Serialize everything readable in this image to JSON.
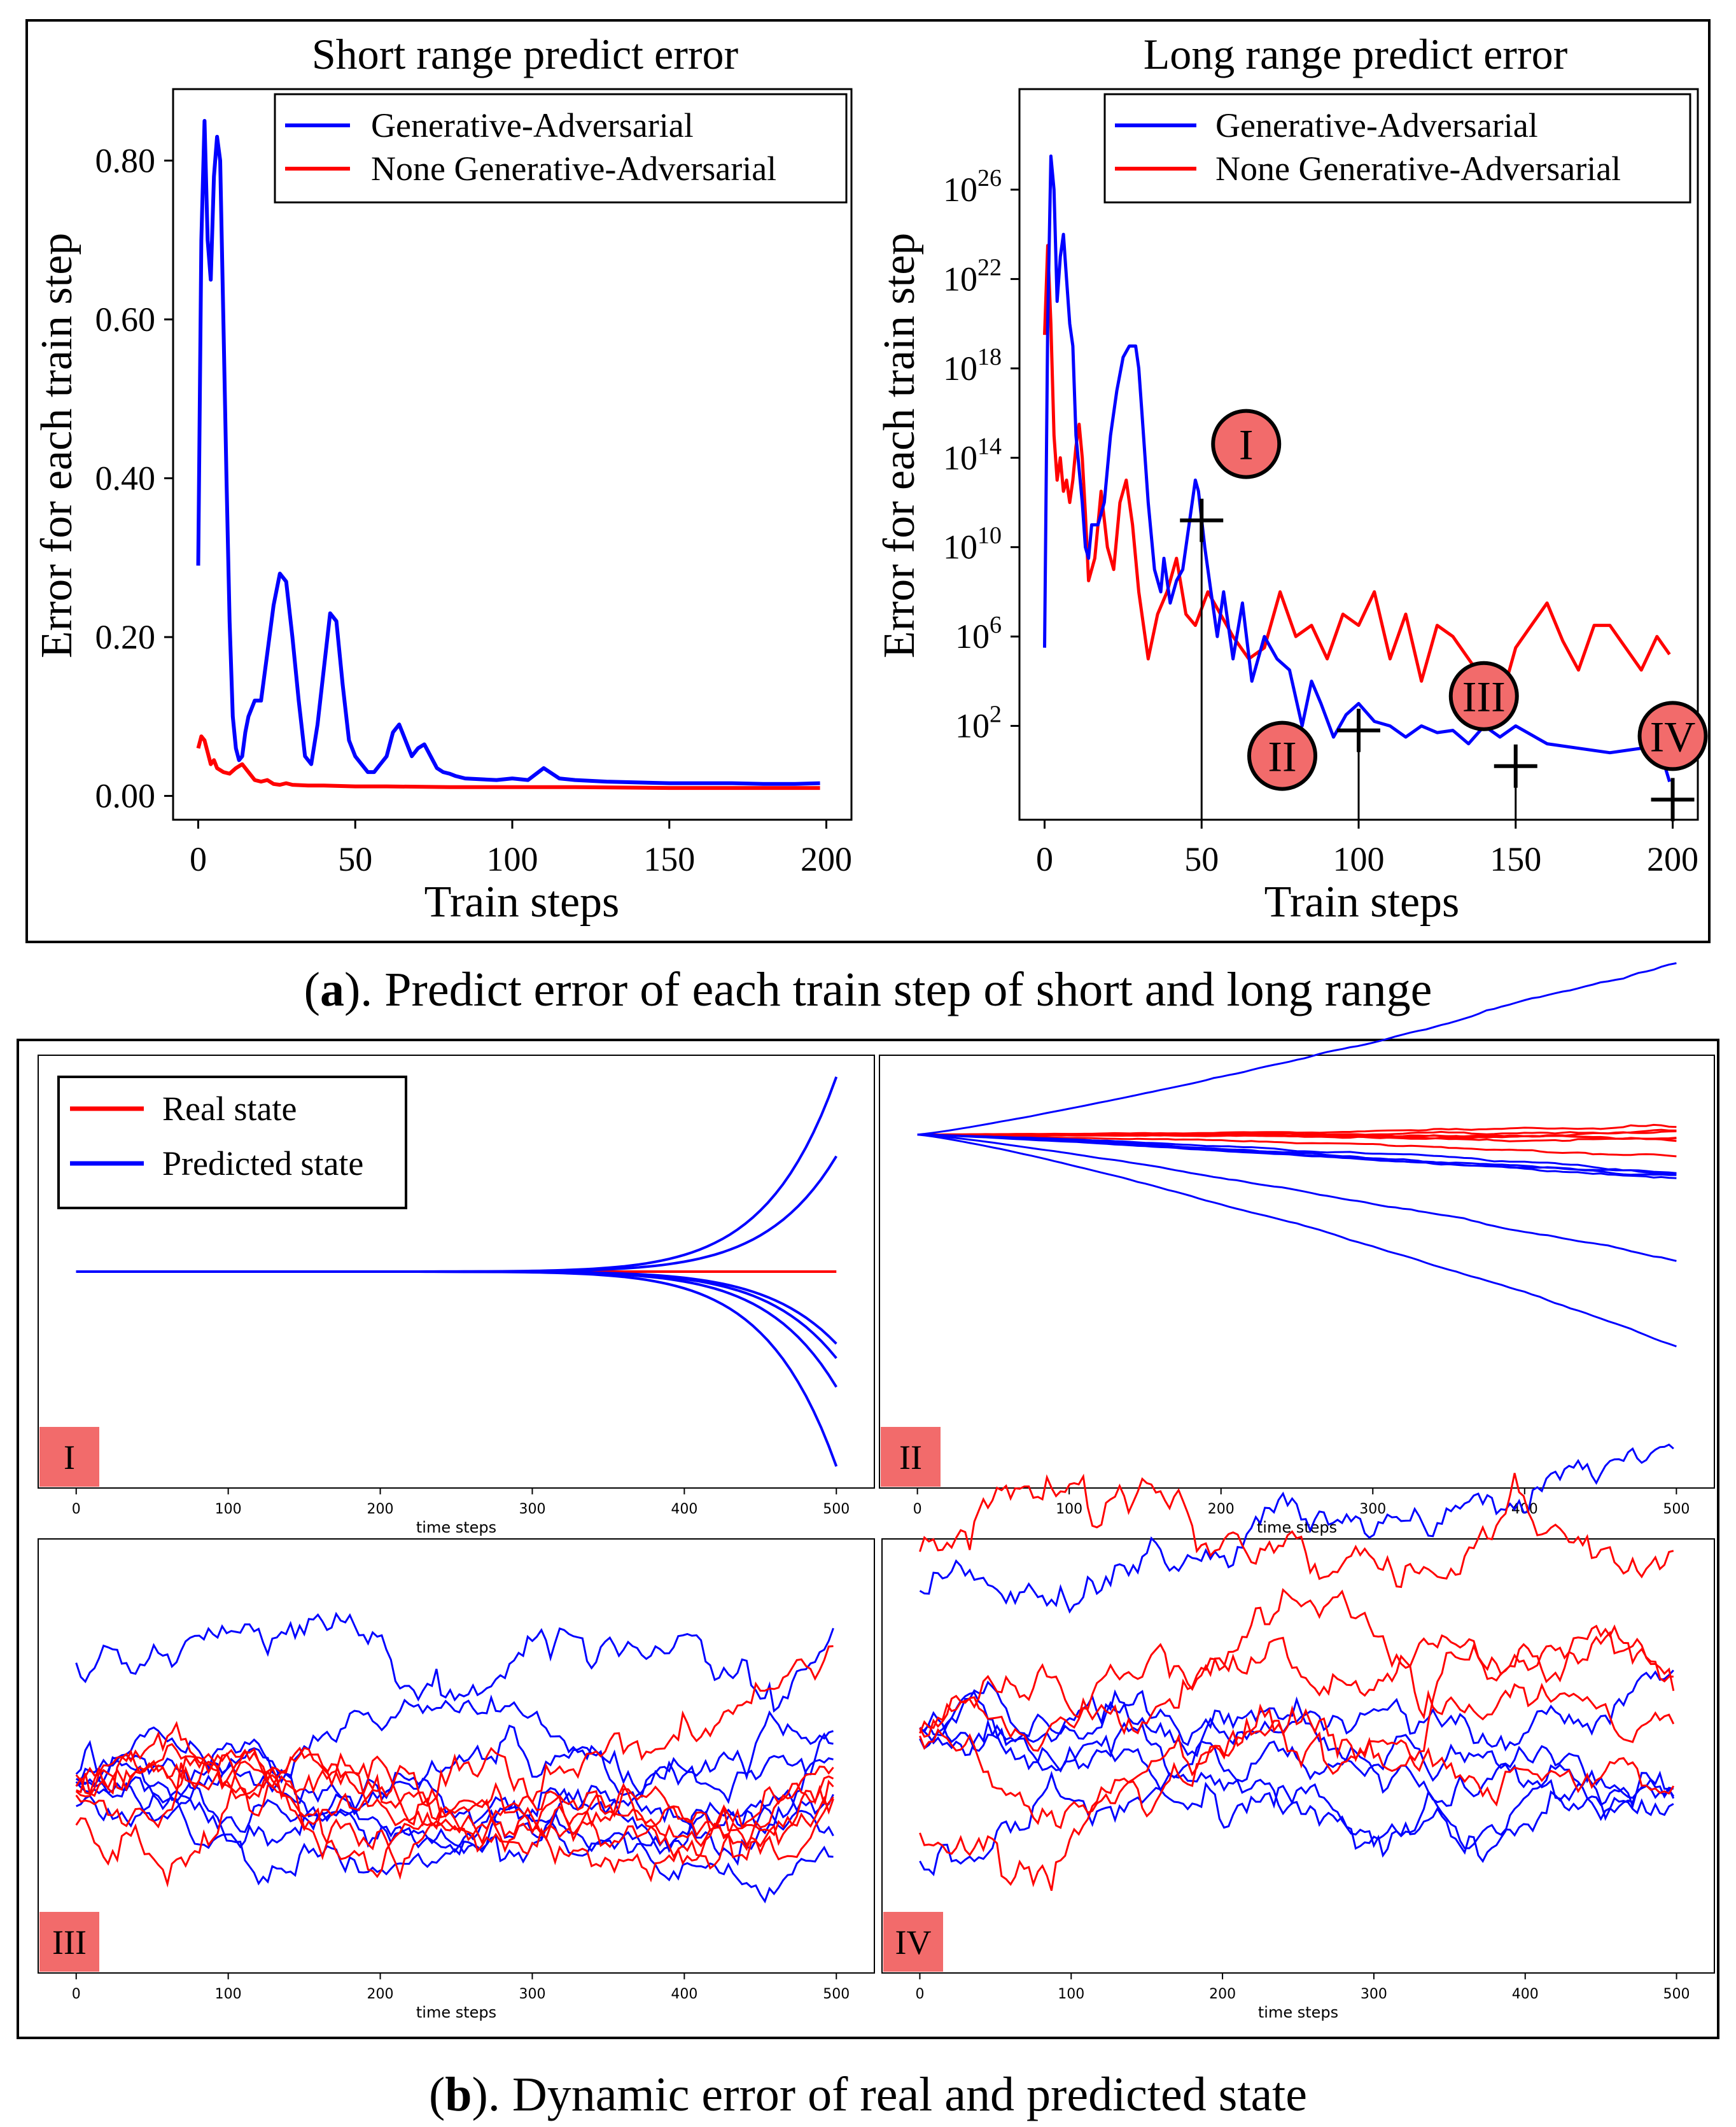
{
  "caption_a": {
    "label": "a",
    "text": "). Predict error of each train step of short and long range"
  },
  "caption_b": {
    "label": "b",
    "text": "). Dynamic error of real and predicted state"
  },
  "colors": {
    "blue": "#0000ff",
    "red": "#ff0000",
    "badge": "#f26b6b"
  },
  "chart_data": [
    {
      "id": "short",
      "type": "line",
      "title": "Short range predict error",
      "xlabel": "Train  steps",
      "ylabel": "Error for each train step",
      "xlim": [
        -8,
        208
      ],
      "ylim": [
        -0.03,
        0.89
      ],
      "xticks": [
        0,
        50,
        100,
        150,
        200
      ],
      "yticks": [
        0.0,
        0.2,
        0.4,
        0.6,
        0.8
      ],
      "ytick_labels": [
        "0.00",
        "0.20",
        "0.40",
        "0.60",
        "0.80"
      ],
      "legend": [
        "Generative-Adversarial",
        "None Generative-Adversarial"
      ],
      "series": [
        {
          "name": "Generative-Adversarial",
          "color": "#0000ff",
          "x": [
            0,
            1,
            2,
            3,
            4,
            5,
            6,
            7,
            8,
            9,
            10,
            11,
            12,
            13,
            14,
            15,
            16,
            18,
            20,
            22,
            24,
            26,
            28,
            30,
            32,
            34,
            36,
            38,
            40,
            42,
            44,
            46,
            48,
            50,
            52,
            54,
            56,
            58,
            60,
            62,
            64,
            66,
            68,
            70,
            72,
            74,
            76,
            78,
            80,
            82,
            85,
            90,
            95,
            100,
            105,
            110,
            115,
            120,
            130,
            140,
            150,
            160,
            170,
            180,
            190,
            198
          ],
          "y": [
            0.29,
            0.7,
            0.85,
            0.7,
            0.65,
            0.78,
            0.83,
            0.8,
            0.6,
            0.4,
            0.22,
            0.1,
            0.06,
            0.045,
            0.05,
            0.08,
            0.1,
            0.12,
            0.12,
            0.18,
            0.24,
            0.28,
            0.27,
            0.2,
            0.12,
            0.05,
            0.04,
            0.09,
            0.16,
            0.23,
            0.22,
            0.14,
            0.07,
            0.05,
            0.04,
            0.03,
            0.03,
            0.04,
            0.05,
            0.08,
            0.09,
            0.07,
            0.05,
            0.06,
            0.065,
            0.05,
            0.035,
            0.03,
            0.028,
            0.025,
            0.022,
            0.021,
            0.02,
            0.022,
            0.02,
            0.035,
            0.022,
            0.02,
            0.018,
            0.017,
            0.016,
            0.016,
            0.016,
            0.015,
            0.015,
            0.016
          ]
        },
        {
          "name": "None Generative-Adversarial",
          "color": "#ff0000",
          "x": [
            0,
            1,
            2,
            3,
            4,
            5,
            6,
            8,
            10,
            12,
            14,
            16,
            18,
            20,
            22,
            24,
            26,
            28,
            30,
            35,
            40,
            50,
            60,
            80,
            100,
            120,
            150,
            180,
            198
          ],
          "y": [
            0.06,
            0.075,
            0.07,
            0.055,
            0.04,
            0.045,
            0.035,
            0.03,
            0.028,
            0.035,
            0.04,
            0.03,
            0.02,
            0.018,
            0.02,
            0.015,
            0.014,
            0.016,
            0.014,
            0.013,
            0.013,
            0.012,
            0.012,
            0.011,
            0.011,
            0.011,
            0.01,
            0.01,
            0.01
          ]
        }
      ]
    },
    {
      "id": "long",
      "type": "line",
      "title": "Long range predict error",
      "xlabel": "Train  steps",
      "ylabel": "Error for each train step",
      "yscale": "log",
      "xlim": [
        -8,
        208
      ],
      "ylim_log10": [
        -2.2,
        30.5
      ],
      "xticks": [
        0,
        50,
        100,
        150,
        200
      ],
      "yticks_log10": [
        2,
        6,
        10,
        14,
        18,
        22,
        26
      ],
      "legend": [
        "Generative-Adversarial",
        "None Generative-Adversarial"
      ],
      "markers": [
        {
          "label": "I",
          "x": 50,
          "log10y": 11.2
        },
        {
          "label": "II",
          "x": 100,
          "log10y": 1.8
        },
        {
          "label": "III",
          "x": 150,
          "log10y": 0.2
        },
        {
          "label": "IV",
          "x": 200,
          "log10y": -1.3
        }
      ],
      "series": [
        {
          "name": "Generative-Adversarial",
          "color": "#0000ff",
          "x": [
            0,
            1,
            2,
            3,
            4,
            5,
            6,
            7,
            8,
            9,
            10,
            12,
            13,
            14,
            15,
            17,
            19,
            21,
            23,
            25,
            27,
            29,
            30,
            31,
            33,
            35,
            37,
            38,
            40,
            42,
            44,
            46,
            48,
            49,
            51,
            53,
            55,
            57,
            60,
            63,
            66,
            70,
            74,
            78,
            82,
            85,
            88,
            92,
            96,
            100,
            105,
            110,
            115,
            120,
            125,
            130,
            135,
            140,
            145,
            150,
            160,
            170,
            180,
            190,
            196,
            199
          ],
          "y": [
            5.5,
            20,
            27.5,
            26,
            21,
            23,
            24,
            22,
            20,
            19,
            15,
            12,
            10,
            9.5,
            11,
            11,
            12,
            15,
            17,
            18.5,
            19,
            19,
            18,
            16,
            12,
            9,
            8,
            9.5,
            7.5,
            8.5,
            9,
            11,
            13,
            12.5,
            10,
            8,
            6,
            8,
            5,
            7.5,
            4,
            6,
            5,
            4.5,
            2,
            4,
            3,
            1.5,
            2.5,
            3,
            2.2,
            2,
            1.5,
            2,
            1.7,
            1.8,
            1.2,
            2,
            1.5,
            2,
            1.2,
            1,
            0.8,
            1,
            0.9,
            -0.5
          ]
        },
        {
          "name": "None Generative-Adversarial",
          "color": "#ff0000",
          "x": [
            0,
            1,
            2,
            3,
            4,
            5,
            6,
            7,
            8,
            9,
            10,
            11,
            12,
            13,
            14,
            15,
            16,
            17,
            18,
            20,
            22,
            24,
            26,
            28,
            30,
            33,
            36,
            39,
            42,
            45,
            48,
            52,
            56,
            60,
            65,
            70,
            75,
            80,
            85,
            90,
            95,
            100,
            105,
            110,
            115,
            120,
            125,
            130,
            135,
            140,
            145,
            150,
            155,
            160,
            165,
            170,
            175,
            180,
            185,
            190,
            195,
            199
          ],
          "y": [
            19.5,
            23.5,
            20,
            15,
            13,
            14,
            12.5,
            13,
            12,
            13,
            14.5,
            15.5,
            14,
            11.5,
            8.5,
            9,
            9.5,
            11,
            12.5,
            10,
            9,
            12,
            13,
            11,
            8,
            5,
            7,
            8,
            9.5,
            7,
            6.5,
            8,
            7,
            6,
            5,
            5.5,
            8,
            6,
            6.5,
            5,
            7,
            6.5,
            8,
            5,
            7,
            4,
            6.5,
            6,
            5,
            4,
            3,
            5.5,
            6.5,
            7.5,
            5.8,
            4.5,
            6.5,
            6.5,
            5.5,
            4.5,
            6,
            5.2
          ]
        }
      ]
    },
    {
      "id": "I",
      "type": "line",
      "label": "I",
      "xlabel": "time steps",
      "xlim": [
        -25,
        525
      ],
      "ylim": [
        -15,
        15
      ],
      "xticks": [
        0,
        100,
        200,
        300,
        400,
        500
      ],
      "legend": [
        "Real state",
        "Predicted state"
      ],
      "pattern": "exponential-divergence",
      "series": [
        {
          "name": "Real state",
          "color": "#ff0000",
          "x": [
            0,
            500
          ],
          "y": [
            0,
            0
          ]
        },
        {
          "name": "Predicted state",
          "color": "#0000ff",
          "endpoints": [
            13.5,
            8,
            -5,
            -6,
            -8,
            -13.5
          ]
        }
      ]
    },
    {
      "id": "II",
      "type": "line",
      "label": "II",
      "xlabel": "time steps",
      "xlim": [
        -25,
        525
      ],
      "ylim": [
        -15,
        15
      ],
      "xticks": [
        0,
        100,
        200,
        300,
        400,
        500
      ],
      "pattern": "diffusion",
      "series": [
        {
          "name": "Real state",
          "color": "#ff0000",
          "endpoints": [
            0.1,
            0.0,
            -0.3,
            -0.4,
            -0.5,
            -0.2,
            -0.6
          ]
        },
        {
          "name": "Predicted state",
          "color": "#0000ff",
          "endpoints": [
            12.5,
            -2.4,
            -2.9,
            -3.2,
            -3.6,
            -8.5,
            -14.5
          ]
        }
      ]
    },
    {
      "id": "III",
      "type": "line",
      "label": "III",
      "xlabel": "time steps",
      "xlim": [
        -25,
        525
      ],
      "ylim": [
        -15,
        15
      ],
      "xticks": [
        0,
        100,
        200,
        300,
        400,
        500
      ],
      "pattern": "random-walk"
    },
    {
      "id": "IV",
      "type": "line",
      "label": "IV",
      "xlabel": "time steps",
      "xlim": [
        -25,
        525
      ],
      "ylim": [
        -15,
        15
      ],
      "xticks": [
        0,
        100,
        200,
        300,
        400,
        500
      ],
      "pattern": "random-walk"
    }
  ]
}
